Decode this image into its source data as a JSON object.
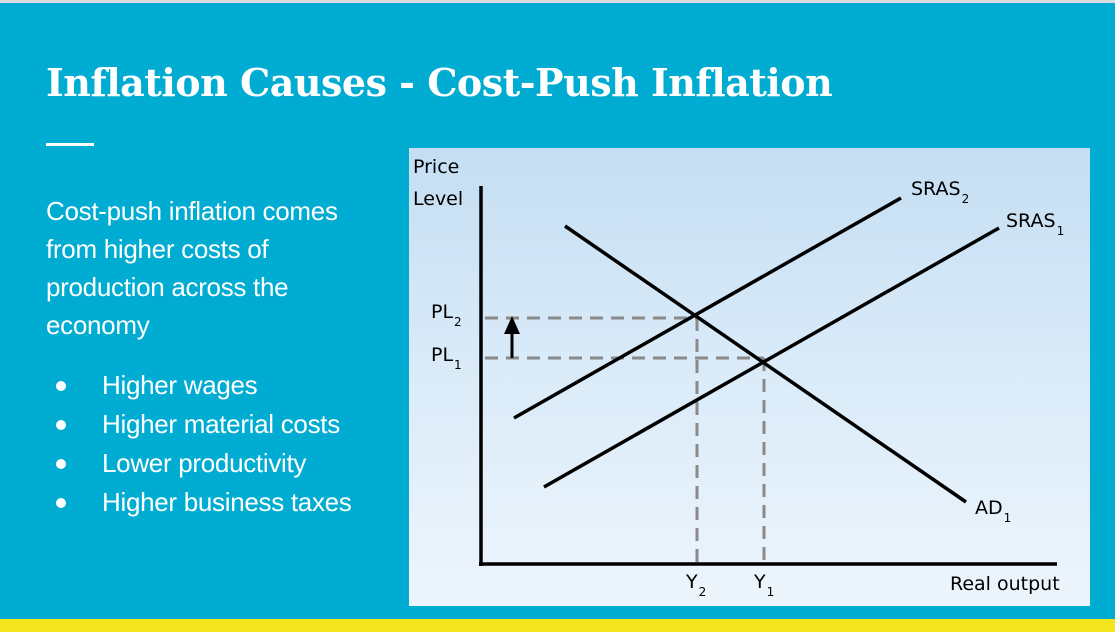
{
  "slide": {
    "title": "Inflation Causes - Cost-Push Inflation",
    "intro": "Cost-push inflation comes from higher costs of production across the economy",
    "bullets": [
      {
        "text": "Higher wages"
      },
      {
        "text": "Higher material costs"
      },
      {
        "text": "Lower productivity"
      },
      {
        "text": "Higher business taxes"
      }
    ]
  },
  "colors": {
    "background": "#00acd1",
    "accent_bar": "#f4e51e",
    "text": "#ffffff"
  },
  "diagram": {
    "y_axis_label_line1": "Price",
    "y_axis_label_line2": "Level",
    "x_axis_label": "Real output",
    "curves": [
      {
        "name": "SRAS",
        "sub": "2"
      },
      {
        "name": "SRAS",
        "sub": "1"
      },
      {
        "name": "AD",
        "sub": "1"
      }
    ],
    "price_levels": [
      {
        "name": "PL",
        "sub": "2"
      },
      {
        "name": "PL",
        "sub": "1"
      }
    ],
    "outputs": [
      {
        "name": "Y",
        "sub": "2"
      },
      {
        "name": "Y",
        "sub": "1"
      }
    ]
  }
}
